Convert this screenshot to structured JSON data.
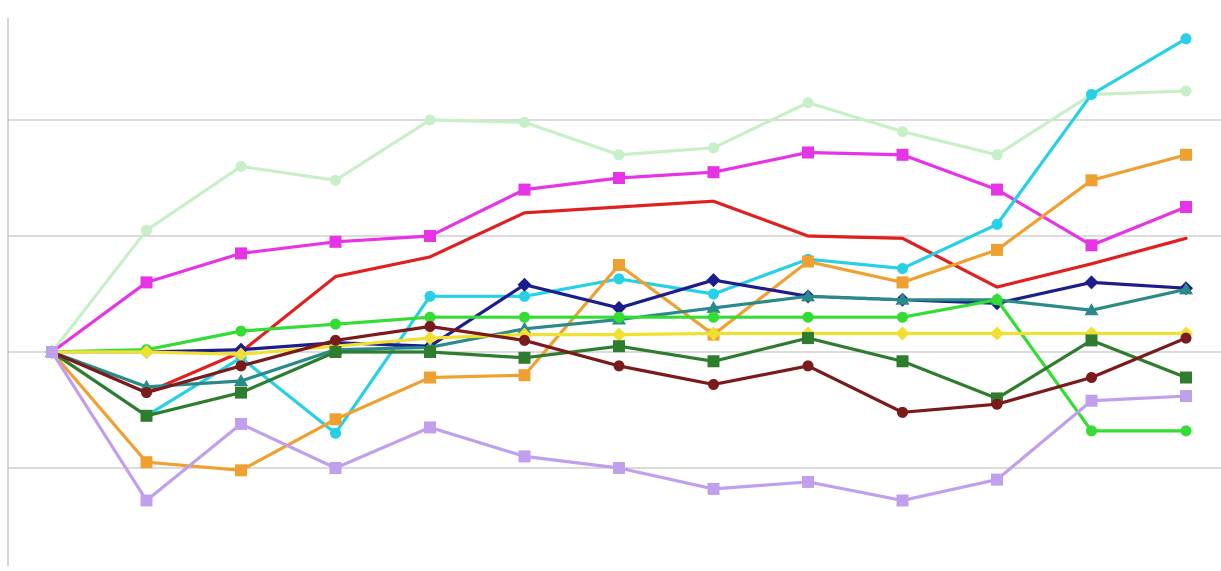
{
  "chart_data": {
    "type": "line",
    "title": "",
    "xlabel": "",
    "ylabel": "",
    "x": [
      0,
      1,
      2,
      3,
      4,
      5,
      6,
      7,
      8,
      9,
      10,
      11,
      12
    ],
    "ylim": [
      -1.8,
      3.0
    ],
    "gridlines": [
      2,
      1,
      0,
      -1
    ],
    "grid": true,
    "legend": "none",
    "series": [
      {
        "color": "#c8f0c8",
        "marker": "circle",
        "values": [
          0,
          1.05,
          1.6,
          1.48,
          2.0,
          1.98,
          1.7,
          1.76,
          2.15,
          1.9,
          1.7,
          2.22,
          2.25
        ]
      },
      {
        "color": "#e633e6",
        "marker": "square",
        "values": [
          0,
          0.6,
          0.85,
          0.95,
          1.0,
          1.4,
          1.5,
          1.55,
          1.72,
          1.7,
          1.4,
          0.92,
          1.25
        ]
      },
      {
        "color": "#e02020",
        "marker": "none",
        "values": [
          0,
          -0.35,
          0.0,
          0.65,
          0.82,
          1.2,
          1.25,
          1.3,
          1.0,
          0.98,
          0.56,
          0.76,
          0.98
        ]
      },
      {
        "color": "#27d0e6",
        "marker": "circle",
        "values": [
          0,
          -0.55,
          -0.05,
          -0.7,
          0.48,
          0.48,
          0.63,
          0.5,
          0.8,
          0.72,
          1.1,
          2.22,
          2.7
        ]
      },
      {
        "color": "#f0a030",
        "marker": "square",
        "values": [
          0,
          -0.95,
          -1.02,
          -0.58,
          -0.22,
          -0.2,
          0.75,
          0.15,
          0.78,
          0.6,
          0.88,
          1.48,
          1.7
        ]
      },
      {
        "color": "#1c1c8c",
        "marker": "diamond",
        "values": [
          0,
          0,
          0.02,
          0.08,
          0.05,
          0.58,
          0.38,
          0.62,
          0.48,
          0.45,
          0.42,
          0.6,
          0.55
        ]
      },
      {
        "color": "#2a8a8a",
        "marker": "triangle",
        "values": [
          0,
          -0.3,
          -0.25,
          0.02,
          0.04,
          0.2,
          0.28,
          0.38,
          0.48,
          0.45,
          0.45,
          0.36,
          0.54
        ]
      },
      {
        "color": "#33dd33",
        "marker": "circle",
        "values": [
          0,
          0.02,
          0.18,
          0.24,
          0.3,
          0.3,
          0.3,
          0.3,
          0.3,
          0.3,
          0.45,
          -0.68,
          -0.68
        ]
      },
      {
        "color": "#f0e030",
        "marker": "diamond",
        "values": [
          0,
          0,
          -0.02,
          0.05,
          0.12,
          0.15,
          0.15,
          0.16,
          0.16,
          0.16,
          0.16,
          0.16,
          0.16
        ]
      },
      {
        "color": "#2e7d2e",
        "marker": "square",
        "values": [
          0,
          -0.55,
          -0.35,
          0.0,
          0.0,
          -0.05,
          0.05,
          -0.08,
          0.12,
          -0.08,
          -0.4,
          0.1,
          -0.22
        ]
      },
      {
        "color": "#7a1a1a",
        "marker": "circle",
        "values": [
          0,
          -0.35,
          -0.12,
          0.1,
          0.22,
          0.1,
          -0.12,
          -0.28,
          -0.12,
          -0.52,
          -0.45,
          -0.22,
          0.12
        ]
      },
      {
        "color": "#c0a0ec",
        "marker": "square",
        "values": [
          0,
          -1.28,
          -0.62,
          -1.0,
          -0.65,
          -0.9,
          -1.0,
          -1.18,
          -1.12,
          -1.28,
          -1.1,
          -0.42,
          -0.38
        ]
      }
    ]
  }
}
